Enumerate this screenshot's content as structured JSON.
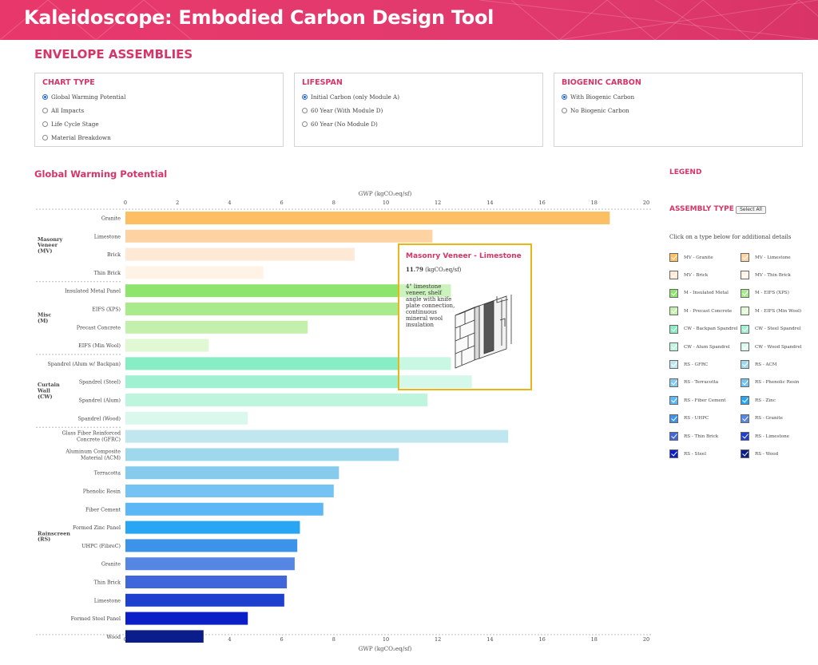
{
  "header": {
    "title": "Kaleidoscope: Embodied Carbon Design Tool",
    "color": "#e5386b"
  },
  "page": {
    "section_title": "ENVELOPE ASSEMBLIES"
  },
  "controls": {
    "chart_type": {
      "title": "CHART TYPE",
      "options": [
        "Global Warming Potential",
        "All Impacts",
        "Life Cycle Stage",
        "Material Breakdown"
      ],
      "selected": 0
    },
    "lifespan": {
      "title": "LIFESPAN",
      "options": [
        "Initial Carbon (only Module A)",
        "60 Year (With Module D)",
        "60 Year (No Module D)"
      ],
      "selected": 0
    },
    "biogenic": {
      "title": "BIOGENIC CARBON",
      "options": [
        "With Biogenic Carbon",
        "No Biogenic Carbon"
      ],
      "selected": 0
    }
  },
  "chart_data": {
    "type": "bar",
    "orientation": "horizontal",
    "title": "Global Warming Potential",
    "xlabel": "GWP (kgCO₂eq/sf)",
    "xlim": [
      0,
      20
    ],
    "xticks": [
      0,
      2,
      4,
      6,
      8,
      10,
      12,
      14,
      16,
      18,
      20
    ],
    "groups": [
      {
        "label": [
          "Masonry",
          "Veneer",
          "(MV)"
        ],
        "bars": [
          {
            "label": [
              "Granite"
            ],
            "value": 18.6,
            "color": "#fdbf63"
          },
          {
            "label": [
              "Limestone"
            ],
            "value": 11.79,
            "color": "#fed3a3"
          },
          {
            "label": [
              "Brick"
            ],
            "value": 8.8,
            "color": "#fee9d6"
          },
          {
            "label": [
              "Thin Brick"
            ],
            "value": 5.3,
            "color": "#fff3e6"
          }
        ]
      },
      {
        "label": [
          "Misc",
          "(M)"
        ],
        "bars": [
          {
            "label": [
              "Insulated Metal Panel"
            ],
            "value": 12.5,
            "color": "#8ee56d"
          },
          {
            "label": [
              "EIFS (XPS)"
            ],
            "value": 10.5,
            "color": "#a9ea8b"
          },
          {
            "label": [
              "Precast Concrete"
            ],
            "value": 7.0,
            "color": "#c4f0ad"
          },
          {
            "label": [
              "EIFS (Min Wool)"
            ],
            "value": 3.2,
            "color": "#e1f8d4"
          }
        ]
      },
      {
        "label": [
          "Curtain",
          "Wall",
          "(CW)"
        ],
        "bars": [
          {
            "label": [
              "Spandrel (Alum w/ Backpan)"
            ],
            "value": 12.5,
            "color": "#86edc4"
          },
          {
            "label": [
              "Spandrel (Steel)"
            ],
            "value": 13.3,
            "color": "#9ff1d1"
          },
          {
            "label": [
              "Spandrel (Alum)"
            ],
            "value": 11.6,
            "color": "#bdf5de"
          },
          {
            "label": [
              "Spandrel (Wood)"
            ],
            "value": 4.7,
            "color": "#daf9ec"
          }
        ]
      },
      {
        "label": [
          "Rainscreen",
          "(RS)"
        ],
        "bars": [
          {
            "label": [
              "Glass Fiber Reinforced",
              "Concrete (GFRC)"
            ],
            "value": 14.7,
            "color": "#c0e6ef"
          },
          {
            "label": [
              "Aluminum Composite",
              "Material (ACM)"
            ],
            "value": 10.5,
            "color": "#9fd8ec"
          },
          {
            "label": [
              "Terracotta"
            ],
            "value": 8.2,
            "color": "#86cbeb"
          },
          {
            "label": [
              "Phenolic Resin"
            ],
            "value": 8.0,
            "color": "#74c3f2"
          },
          {
            "label": [
              "Fiber Cement"
            ],
            "value": 7.6,
            "color": "#5db7f6"
          },
          {
            "label": [
              "Formed Zinc Panel"
            ],
            "value": 6.7,
            "color": "#28a5f3"
          },
          {
            "label": [
              "UHPC (FibreC)"
            ],
            "value": 6.6,
            "color": "#3b93ea"
          },
          {
            "label": [
              "Granite"
            ],
            "value": 6.5,
            "color": "#5586e4"
          },
          {
            "label": [
              "Thin Brick"
            ],
            "value": 6.2,
            "color": "#4066dc"
          },
          {
            "label": [
              "Limestone"
            ],
            "value": 6.1,
            "color": "#1f3fcf"
          },
          {
            "label": [
              "Formed Steel Panel"
            ],
            "value": 4.7,
            "color": "#0b1fc9"
          },
          {
            "label": [
              "Wood"
            ],
            "value": 3.0,
            "color": "#0a1d8a"
          }
        ]
      }
    ]
  },
  "tooltip": {
    "title": "Masonry Veneer - Limestone",
    "value": "11.79",
    "unit": "(kgCO₂eq/sf)",
    "description": "4\" limestone veneer, shelf angle with knife plate connection, continuous mineral wool insulation",
    "border_color": "#e8b715"
  },
  "legend": {
    "title": "LEGEND",
    "subtitle": "ASSEMBLY TYPE",
    "select_all": "Select All",
    "hint": "Click on a type below for additional details",
    "items": [
      {
        "label": "MV - Granite",
        "color": "#fdbf63"
      },
      {
        "label": "MV - Limestone",
        "color": "#fed3a3"
      },
      {
        "label": "MV - Brick",
        "color": "#fee9d6"
      },
      {
        "label": "MV - Thin Brick",
        "color": "#fff3e6"
      },
      {
        "label": "M - Insulated Metal",
        "color": "#8ee56d"
      },
      {
        "label": "M - EIFS (XPS)",
        "color": "#a9ea8b"
      },
      {
        "label": "M - Precast Concrete",
        "color": "#c4f0ad"
      },
      {
        "label": "M - EIFS (Min Wool)",
        "color": "#e1f8d4"
      },
      {
        "label": "CW - Backpan Spandrel",
        "color": "#86edc4"
      },
      {
        "label": "CW - Steel Spandrel",
        "color": "#9ff1d1"
      },
      {
        "label": "CW - Alum Spandrel",
        "color": "#bdf5de"
      },
      {
        "label": "CW - Wood Spandrel",
        "color": "#daf9ec"
      },
      {
        "label": "RS - GFRC",
        "color": "#c0e6ef"
      },
      {
        "label": "RS - ACM",
        "color": "#9fd8ec"
      },
      {
        "label": "RS - Terracotta",
        "color": "#86cbeb"
      },
      {
        "label": "RS - Phenolic Resin",
        "color": "#74c3f2"
      },
      {
        "label": "RS - Fiber Cement",
        "color": "#5db7f6"
      },
      {
        "label": "RS - Zinc",
        "color": "#28a5f3"
      },
      {
        "label": "RS - UHPC",
        "color": "#3b93ea"
      },
      {
        "label": "RS - Granite",
        "color": "#5586e4"
      },
      {
        "label": "RS - Thin Brick",
        "color": "#4066dc"
      },
      {
        "label": "RS - Limestone",
        "color": "#1f3fcf"
      },
      {
        "label": "RS - Steel",
        "color": "#0b1fc9"
      },
      {
        "label": "RS - Wood",
        "color": "#0a1d8a"
      }
    ]
  }
}
